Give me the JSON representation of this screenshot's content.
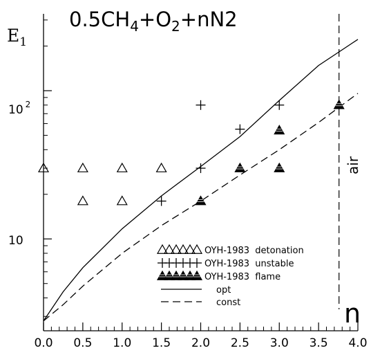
{
  "chart_data": {
    "type": "scatter",
    "title_parts": {
      "a": "0.5CH",
      "a_sub": "4",
      "b": "+O",
      "b_sub": "2",
      "c": "+nN2"
    },
    "ylabel_main": "E",
    "ylabel_sub": "1",
    "xlabel": "n",
    "annotation": "air",
    "x_ticks": [
      "0.0",
      "0.5",
      "1.0",
      "1.5",
      "2.0",
      "2.5",
      "3.0",
      "3.5",
      "4.0"
    ],
    "y_tick_10": "10",
    "y_tick_100_base": "10",
    "y_tick_100_exp": "2",
    "xlim": [
      0,
      4
    ],
    "ylim": [
      2.4,
      330
    ],
    "y_scale": "log",
    "air_line_x": 3.76,
    "series": [
      {
        "name": "OYH-1983  detonation",
        "marker": "open-triangle",
        "points": [
          [
            0.0,
            30
          ],
          [
            0.5,
            30
          ],
          [
            1.0,
            30
          ],
          [
            1.5,
            30
          ],
          [
            0.5,
            18
          ],
          [
            1.0,
            18
          ]
        ]
      },
      {
        "name": "OYH-1983  unstable",
        "marker": "plus",
        "points": [
          [
            2.0,
            80
          ],
          [
            3.0,
            80
          ],
          [
            2.5,
            55
          ],
          [
            2.0,
            30
          ],
          [
            1.5,
            18
          ]
        ]
      },
      {
        "name": "OYH-1983  flame",
        "marker": "filled-triangle",
        "points": [
          [
            3.76,
            80
          ],
          [
            3.0,
            54
          ],
          [
            2.5,
            30
          ],
          [
            3.0,
            30
          ],
          [
            2.0,
            18
          ]
        ]
      },
      {
        "name": "opt",
        "line": "solid",
        "points": [
          [
            0.0,
            2.8
          ],
          [
            0.25,
            4.4
          ],
          [
            0.5,
            6.4
          ],
          [
            1.0,
            11.7
          ],
          [
            1.5,
            19.5
          ],
          [
            2.0,
            30.8
          ],
          [
            2.5,
            49
          ],
          [
            3.0,
            86
          ],
          [
            3.5,
            148
          ],
          [
            4.0,
            222
          ]
        ]
      },
      {
        "name": "const",
        "line": "dashed",
        "points": [
          [
            0.0,
            2.8
          ],
          [
            0.25,
            3.6
          ],
          [
            0.5,
            4.8
          ],
          [
            1.0,
            8.0
          ],
          [
            1.5,
            12.3
          ],
          [
            2.0,
            18.0
          ],
          [
            2.5,
            27.0
          ],
          [
            3.0,
            40.0
          ],
          [
            3.5,
            61.0
          ],
          [
            4.0,
            96.0
          ]
        ]
      }
    ]
  }
}
